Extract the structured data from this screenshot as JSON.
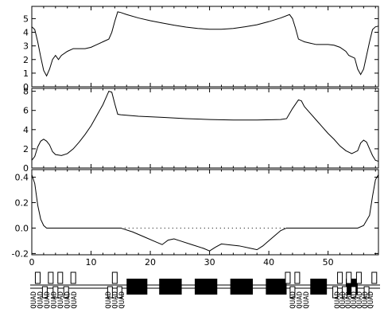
{
  "chart_data": [
    {
      "type": "line",
      "title": "",
      "xlabel": "",
      "ylabel": "",
      "xlim": [
        0,
        58.5
      ],
      "ylim": [
        0,
        5.9
      ],
      "y_ticks": [
        {
          "value": 0,
          "label": "0"
        },
        {
          "value": 1,
          "label": "1"
        },
        {
          "value": 2,
          "label": "2"
        },
        {
          "value": 3,
          "label": "3"
        },
        {
          "value": 4,
          "label": "4"
        },
        {
          "value": 5,
          "label": "5"
        }
      ],
      "series": [
        {
          "points": [
            [
              0,
              4.4
            ],
            [
              0.5,
              4.2
            ],
            [
              1,
              3.3
            ],
            [
              1.5,
              2.2
            ],
            [
              2,
              1.2
            ],
            [
              2.5,
              0.8
            ],
            [
              3,
              1.3
            ],
            [
              3.5,
              2.0
            ],
            [
              4,
              2.3
            ],
            [
              4.5,
              2.0
            ],
            [
              5,
              2.3
            ],
            [
              6,
              2.6
            ],
            [
              7,
              2.8
            ],
            [
              8,
              2.8
            ],
            [
              9,
              2.8
            ],
            [
              10,
              2.9
            ],
            [
              11,
              3.1
            ],
            [
              12,
              3.3
            ],
            [
              13,
              3.5
            ],
            [
              13.5,
              4.0
            ],
            [
              14,
              4.8
            ],
            [
              14.5,
              5.5
            ],
            [
              15,
              5.45
            ],
            [
              16,
              5.3
            ],
            [
              18,
              5.05
            ],
            [
              20,
              4.85
            ],
            [
              22,
              4.68
            ],
            [
              24,
              4.52
            ],
            [
              26,
              4.38
            ],
            [
              28,
              4.28
            ],
            [
              30,
              4.22
            ],
            [
              32,
              4.22
            ],
            [
              34,
              4.28
            ],
            [
              36,
              4.4
            ],
            [
              38,
              4.55
            ],
            [
              40,
              4.78
            ],
            [
              42,
              5.05
            ],
            [
              43.5,
              5.3
            ],
            [
              44,
              5.0
            ],
            [
              44.5,
              4.3
            ],
            [
              45,
              3.5
            ],
            [
              46,
              3.3
            ],
            [
              47,
              3.2
            ],
            [
              48,
              3.1
            ],
            [
              49,
              3.1
            ],
            [
              50,
              3.1
            ],
            [
              51,
              3.05
            ],
            [
              52,
              2.9
            ],
            [
              53,
              2.6
            ],
            [
              53.5,
              2.3
            ],
            [
              54,
              2.2
            ],
            [
              54.5,
              2.1
            ],
            [
              55,
              1.3
            ],
            [
              55.5,
              0.9
            ],
            [
              56,
              1.3
            ],
            [
              56.5,
              2.3
            ],
            [
              57,
              3.3
            ],
            [
              57.5,
              4.2
            ],
            [
              58,
              4.4
            ],
            [
              58.5,
              4.45
            ]
          ]
        }
      ],
      "grid": false
    },
    {
      "type": "line",
      "title": "",
      "xlabel": "",
      "ylabel": "",
      "xlim": [
        0,
        58.5
      ],
      "ylim": [
        0,
        8.3
      ],
      "y_ticks": [
        {
          "value": 0,
          "label": "0"
        },
        {
          "value": 2,
          "label": "2"
        },
        {
          "value": 4,
          "label": "4"
        },
        {
          "value": 6,
          "label": "6"
        },
        {
          "value": 8,
          "label": "8"
        }
      ],
      "series": [
        {
          "points": [
            [
              0,
              0.8
            ],
            [
              0.5,
              1.2
            ],
            [
              1,
              2.2
            ],
            [
              1.5,
              2.8
            ],
            [
              2,
              3.0
            ],
            [
              2.5,
              2.8
            ],
            [
              3,
              2.4
            ],
            [
              3.5,
              1.7
            ],
            [
              4,
              1.4
            ],
            [
              5,
              1.3
            ],
            [
              6,
              1.5
            ],
            [
              7,
              2.0
            ],
            [
              8,
              2.7
            ],
            [
              9,
              3.5
            ],
            [
              10,
              4.4
            ],
            [
              11,
              5.5
            ],
            [
              12,
              6.6
            ],
            [
              12.5,
              7.3
            ],
            [
              13,
              8.0
            ],
            [
              13.5,
              7.9
            ],
            [
              14,
              6.7
            ],
            [
              14.5,
              5.6
            ],
            [
              15,
              5.55
            ],
            [
              18,
              5.4
            ],
            [
              22,
              5.28
            ],
            [
              26,
              5.15
            ],
            [
              30,
              5.05
            ],
            [
              34,
              5.0
            ],
            [
              38,
              5.0
            ],
            [
              42,
              5.05
            ],
            [
              43,
              5.15
            ],
            [
              44,
              6.2
            ],
            [
              45,
              7.1
            ],
            [
              45.5,
              7.0
            ],
            [
              46,
              6.4
            ],
            [
              47,
              5.7
            ],
            [
              48,
              5.0
            ],
            [
              49,
              4.3
            ],
            [
              50,
              3.6
            ],
            [
              51,
              3.0
            ],
            [
              52,
              2.3
            ],
            [
              53,
              1.8
            ],
            [
              54,
              1.5
            ],
            [
              55,
              1.8
            ],
            [
              55.5,
              2.6
            ],
            [
              56,
              2.9
            ],
            [
              56.5,
              2.7
            ],
            [
              57,
              2.0
            ],
            [
              57.5,
              1.3
            ],
            [
              58,
              0.8
            ],
            [
              58.5,
              0.7
            ]
          ]
        }
      ],
      "grid": false
    },
    {
      "type": "line",
      "title": "",
      "xlabel": "",
      "ylabel": "",
      "xlim": [
        0,
        58.5
      ],
      "ylim": [
        -0.21,
        0.46
      ],
      "x_ticks": [
        {
          "value": 0,
          "label": "0"
        },
        {
          "value": 10,
          "label": "10"
        },
        {
          "value": 20,
          "label": "20"
        },
        {
          "value": 30,
          "label": "30"
        },
        {
          "value": 40,
          "label": "40"
        },
        {
          "value": 50,
          "label": "50"
        }
      ],
      "y_ticks": [
        {
          "value": -0.2,
          "label": "-0.2"
        },
        {
          "value": 0.0,
          "label": "0.0"
        },
        {
          "value": 0.2,
          "label": "0.2"
        },
        {
          "value": 0.4,
          "label": "0.4"
        }
      ],
      "reference_line": {
        "y": 0.0,
        "style": "dotted",
        "x_range": [
          15,
          43
        ]
      },
      "series": [
        {
          "points": [
            [
              0,
              0.42
            ],
            [
              0.5,
              0.35
            ],
            [
              1,
              0.18
            ],
            [
              1.5,
              0.07
            ],
            [
              2,
              0.02
            ],
            [
              2.5,
              0.0
            ],
            [
              5,
              0.0
            ],
            [
              10,
              0.0
            ],
            [
              14,
              0.0
            ],
            [
              15,
              0.0
            ],
            [
              17,
              -0.03
            ],
            [
              19,
              -0.07
            ],
            [
              21,
              -0.11
            ],
            [
              22,
              -0.13
            ],
            [
              23,
              -0.095
            ],
            [
              24,
              -0.085
            ],
            [
              25,
              -0.1
            ],
            [
              27,
              -0.13
            ],
            [
              29,
              -0.16
            ],
            [
              30,
              -0.18
            ],
            [
              31,
              -0.15
            ],
            [
              32,
              -0.125
            ],
            [
              33,
              -0.13
            ],
            [
              35,
              -0.14
            ],
            [
              37,
              -0.16
            ],
            [
              38,
              -0.17
            ],
            [
              39,
              -0.14
            ],
            [
              40,
              -0.1
            ],
            [
              41,
              -0.06
            ],
            [
              42,
              -0.02
            ],
            [
              43,
              0.0
            ],
            [
              50,
              0.0
            ],
            [
              55,
              0.0
            ],
            [
              56,
              0.02
            ],
            [
              57,
              0.1
            ],
            [
              57.5,
              0.25
            ],
            [
              58,
              0.38
            ],
            [
              58.5,
              0.42
            ]
          ]
        }
      ],
      "grid": false
    }
  ],
  "lattice": {
    "left_labels": [
      "QUAD",
      "QUAD",
      "QUAD",
      "QUAD",
      "QUAD",
      "QUAD",
      "QUAD"
    ],
    "left_mid_labels": [
      "QUAD",
      "QUAD",
      "QUAD"
    ],
    "right_mid_labels": [
      "QUAD",
      "QUAD",
      "QUAD"
    ],
    "right_labels": [
      "QUAD",
      "QUAD",
      "QUAD",
      "QUAD",
      "QUAD",
      "QUAD",
      "QUAD"
    ],
    "quads": [
      1.0,
      2.2,
      3.2,
      4.0,
      4.8,
      5.8,
      7.0,
      13.2,
      14.0,
      14.8,
      43.2,
      44.0,
      44.8,
      51.2,
      52.0,
      52.8,
      53.5,
      54.3,
      55.2,
      56.5,
      57.8
    ],
    "dipoles": [
      [
        16.0,
        19.5
      ],
      [
        21.5,
        25.3
      ],
      [
        27.5,
        31.3
      ],
      [
        33.5,
        37.3
      ],
      [
        39.5,
        43.0
      ],
      [
        47.0,
        49.8
      ],
      [
        53.0,
        55.0
      ]
    ]
  }
}
